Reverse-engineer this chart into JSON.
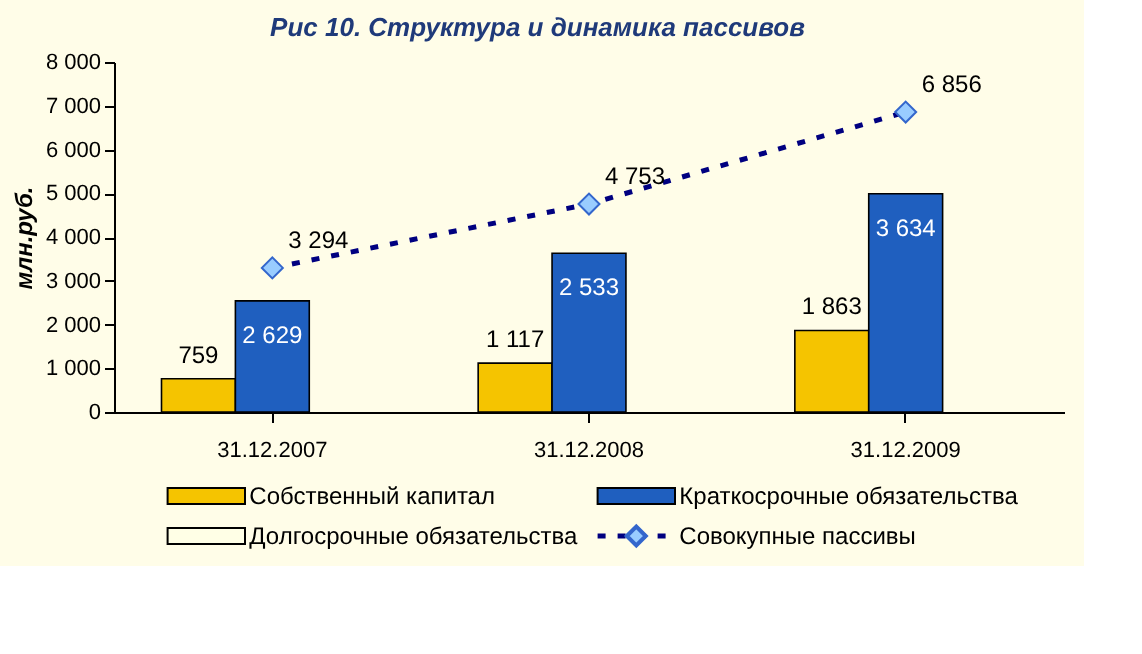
{
  "chart_data": {
    "type": "bar",
    "title": "Рис 10. Структура и динамика пассивов",
    "ylabel": "млн.руб.",
    "categories": [
      "31.12.2007",
      "31.12.2008",
      "31.12.2009"
    ],
    "series": [
      {
        "name": "Собственный капитал",
        "color": "#f5c400",
        "values": [
          759,
          1117,
          1863
        ],
        "data_labels": true
      },
      {
        "name": "Краткосрочные обязательства",
        "color": "#1f5fbf",
        "values": [
          2540,
          3630,
          4990
        ]
      },
      {
        "name": "Долгосрочные обязательства",
        "color": "#ffffe6",
        "values": [
          null,
          null,
          null
        ]
      },
      {
        "name": "Совокупные пассивы",
        "type": "line",
        "color": "#000080",
        "values": [
          3294,
          4753,
          6856
        ],
        "marker": "diamond",
        "line_style": "dashed",
        "data_labels": true
      }
    ],
    "annotations": [
      "2 629",
      "2 533",
      "3 634"
    ],
    "ylim": [
      0,
      8000
    ],
    "yticks": [
      0,
      1000,
      2000,
      3000,
      4000,
      5000,
      6000,
      7000,
      8000
    ],
    "grid": false,
    "legend": "bottom"
  }
}
